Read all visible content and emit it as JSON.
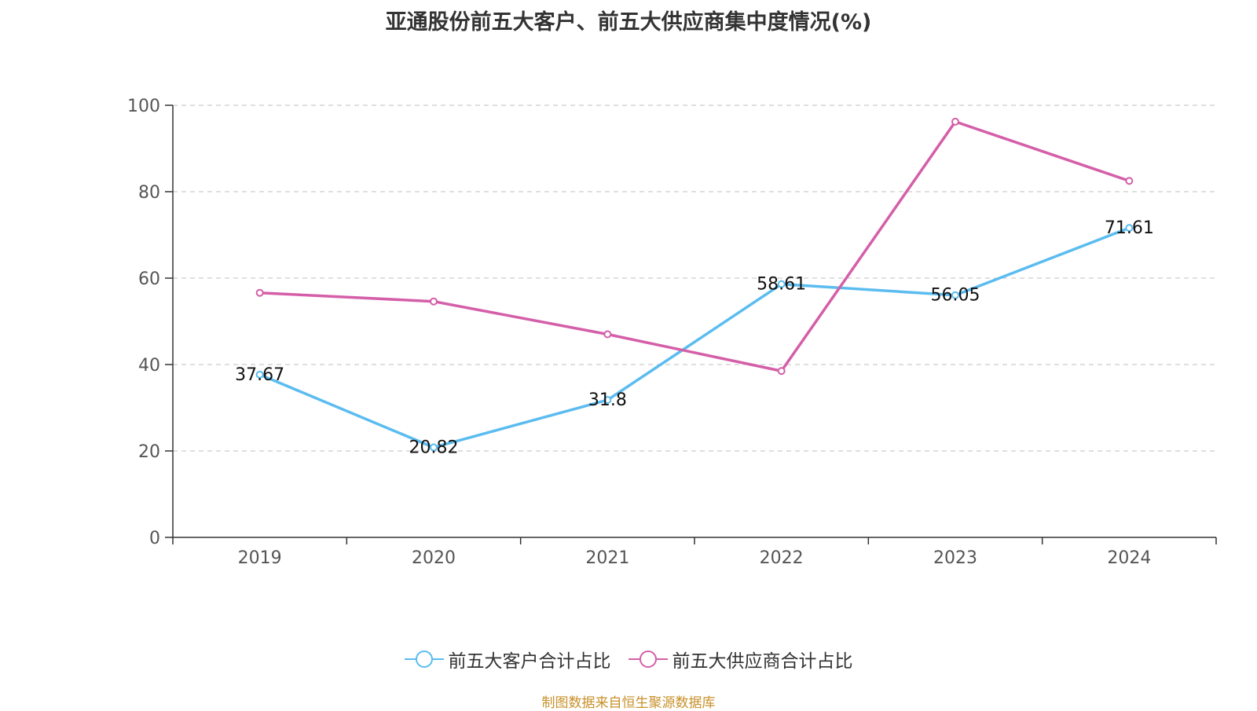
{
  "chart_data": {
    "type": "line",
    "title": "亚通股份前五大客户、前五大供应商集中度情况(%)",
    "xlabel": "",
    "ylabel": "",
    "categories": [
      "2019",
      "2020",
      "2021",
      "2022",
      "2023",
      "2024"
    ],
    "ylim": [
      0,
      100
    ],
    "yticks": [
      0,
      20,
      40,
      60,
      80,
      100
    ],
    "grid": true,
    "legend_position": "bottom",
    "series": [
      {
        "name": "前五大客户合计占比",
        "color": "#5bbcf0",
        "values": [
          37.67,
          20.82,
          31.8,
          58.61,
          56.05,
          71.61
        ],
        "labels": [
          "37.67",
          "20.82",
          "31.8",
          "58.61",
          "56.05",
          "71.61"
        ]
      },
      {
        "name": "前五大供应商合计占比",
        "color": "#d45fa8",
        "values": [
          56.6,
          54.6,
          47.0,
          38.5,
          96.2,
          82.5
        ],
        "labels": []
      }
    ]
  },
  "source_text": "制图数据来自恒生聚源数据库"
}
